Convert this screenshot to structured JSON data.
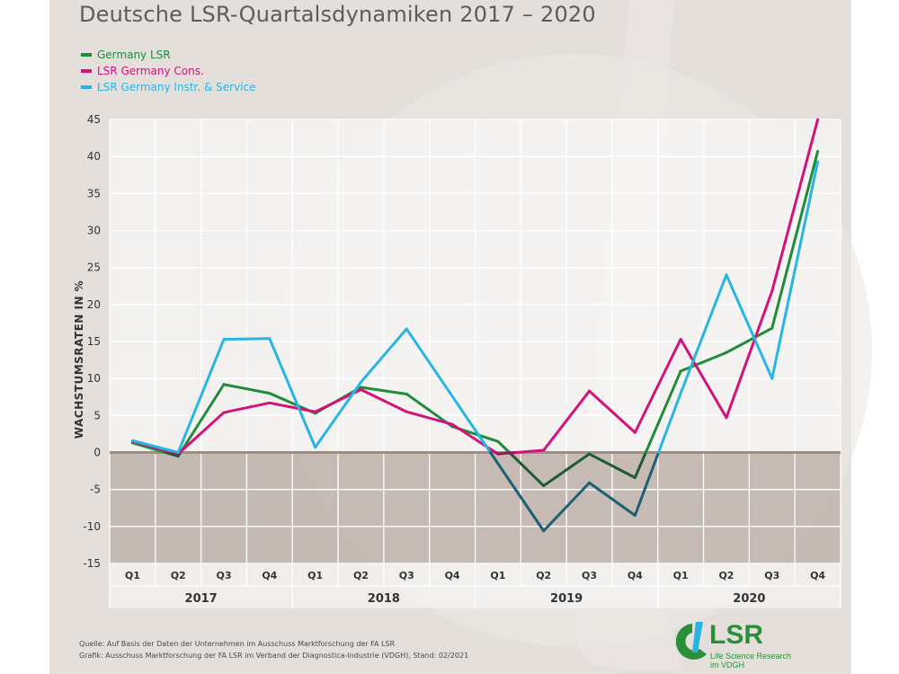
{
  "title": "Deutsche LSR-Quartalsdynamiken 2017 – 2020",
  "legend": [
    {
      "name": "Germany LSR",
      "color": "#1e8c3a"
    },
    {
      "name": "LSR Germany Cons.",
      "color": "#d1137a"
    },
    {
      "name": "LSR Germany Instr. & Service",
      "color": "#27b6e4"
    }
  ],
  "footer": {
    "source": "Quelle: Auf Basis der Daten der Unternehmen im Ausschuss Marktforschung der FA LSR",
    "graphic": "Grafik: Ausschuss Marktforschung der FA LSR im Verband der Diagnostica-Industrie (VDGH), Stand: 02/2021"
  },
  "logo": {
    "text": "LSR",
    "sub1": "Life Science Research",
    "sub2": "im VDGH"
  },
  "chart_data": {
    "type": "line",
    "ylabel": "WACHSTUMSRATEN IN %",
    "ylim": [
      -15,
      45
    ],
    "yticks": [
      -15,
      -10,
      -5,
      0,
      5,
      10,
      15,
      20,
      25,
      30,
      35,
      40,
      45
    ],
    "quarters": [
      "Q1",
      "Q2",
      "Q3",
      "Q4",
      "Q1",
      "Q2",
      "Q3",
      "Q4",
      "Q1",
      "Q2",
      "Q3",
      "Q4",
      "Q1",
      "Q2",
      "Q3",
      "Q4"
    ],
    "years": [
      "2017",
      "2018",
      "2019",
      "2020"
    ],
    "grid": true,
    "series": [
      {
        "name": "Germany LSR",
        "color": "#1e8c3a",
        "negative_color": "#1f5a38",
        "values": [
          1.3,
          -0.5,
          9.2,
          8.0,
          5.3,
          8.8,
          7.9,
          3.5,
          1.5,
          -4.5,
          -0.2,
          -3.4,
          11.0,
          13.5,
          16.8,
          40.7
        ]
      },
      {
        "name": "LSR Germany Cons.",
        "color": "#d1137a",
        "negative_color": "#a0105e",
        "values": [
          1.5,
          -0.2,
          5.4,
          6.7,
          5.5,
          8.5,
          5.5,
          3.8,
          -0.2,
          0.3,
          8.3,
          2.7,
          15.3,
          4.7,
          21.8,
          45.0
        ]
      },
      {
        "name": "LSR Germany Instr. & Service",
        "color": "#27b6e4",
        "negative_color": "#1f5e73",
        "values": [
          1.6,
          0.0,
          15.3,
          15.4,
          0.7,
          9.5,
          16.7,
          null,
          null,
          -10.6,
          -4.1,
          -8.5,
          8.0,
          24.0,
          10.0,
          39.3
        ]
      }
    ]
  }
}
